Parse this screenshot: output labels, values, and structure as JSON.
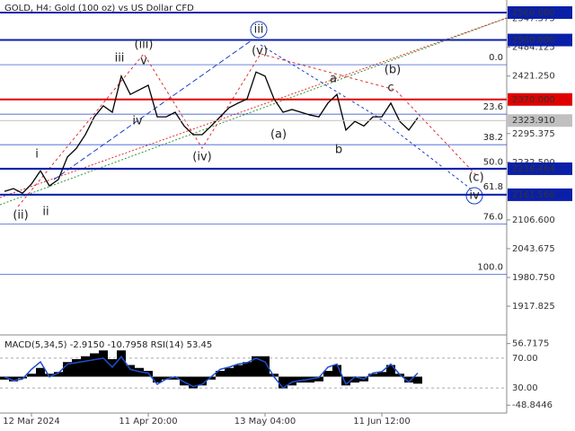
{
  "chart_data": {
    "type": "line",
    "title": "GOLD, H4:  Gold (100 oz) vs US Dollar CFD",
    "categories": [
      null,
      null,
      null,
      "12 Mar 2024",
      null,
      null,
      null,
      null,
      null,
      null,
      null,
      null,
      null,
      null,
      null,
      null,
      "11 Apr 20:00",
      null,
      null,
      null,
      null,
      null,
      null,
      null,
      null,
      null,
      null,
      null,
      null,
      "13 May 04:00",
      null,
      null,
      null,
      null,
      null,
      null,
      null,
      null,
      null,
      null,
      null,
      null,
      "11 Jun 12:00",
      null,
      null,
      null,
      null
    ],
    "series": [
      {
        "name": "GOLD",
        "color": "#000000",
        "values": [
          2169,
          2175,
          2165,
          2185,
          2214,
          2181,
          2195,
          2244,
          2263,
          2293,
          2332,
          2356,
          2342,
          2421,
          2381,
          2391,
          2401,
          2332,
          2332,
          2342,
          2312,
          2293,
          2293,
          2312,
          2332,
          2352,
          2362,
          2371,
          2430,
          2421,
          2371,
          2342,
          2348,
          2342,
          2336,
          2332,
          2362,
          2381,
          2303,
          2322,
          2312,
          2332,
          2332,
          2362,
          2322,
          2303,
          2330
        ]
      }
    ],
    "ylim": [
      1857,
      2587.5
    ],
    "yticks": [
      {
        "value": 2547.575,
        "label": "2547.575"
      },
      {
        "value": 2484.125,
        "label": "2484.125"
      },
      {
        "value": 2421.25,
        "label": "2421.250"
      },
      {
        "value": 2295.375,
        "label": "2295.375"
      },
      {
        "value": 2232.5,
        "label": "2232.500"
      },
      {
        "value": 2106.6,
        "label": "2106.600"
      },
      {
        "value": 2043.675,
        "label": "2043.675"
      },
      {
        "value": 1980.75,
        "label": "1980.750"
      },
      {
        "value": 1917.825,
        "label": "1917.825"
      }
    ],
    "levels": [
      {
        "value": 2560,
        "label": "2560.000",
        "color": "#0a1fa8"
      },
      {
        "value": 2500,
        "label": "2500.000",
        "color": "#0a1fa8"
      },
      {
        "value": 2370,
        "label": "2370.000",
        "color": "#e00000"
      },
      {
        "value": 2218.464,
        "label": "2218.464",
        "color": "#0a1fa8"
      },
      {
        "value": 2161.568,
        "label": "2161.568",
        "color": "#0a1fa8"
      }
    ],
    "current_price": {
      "value": 2323.91,
      "label": "2323.910",
      "color": "#c0c0c0"
    },
    "fibonacci": {
      "range": [
        2446,
        1988
      ],
      "levels": [
        {
          "value": 0,
          "label": "0.0"
        },
        23.6,
        38.2,
        {
          "value": 50,
          "label": "50.0"
        },
        61.8,
        {
          "value": 76,
          "label": "76.0"
        },
        {
          "value": 100,
          "label": "100.0"
        }
      ],
      "color": "#1a3fc8"
    },
    "wave_labels": [
      "iii",
      "(v)",
      "(iii)",
      "iii",
      "v",
      "iv",
      "(iv)",
      "(a)",
      "a",
      "b",
      "(b)",
      "c",
      "(c)",
      "iv",
      "i",
      "ii",
      "(ii)"
    ],
    "indicator": {
      "title": "MACD(5,34,5) -2.9150 -10.7958 RSI(14) 53.45",
      "macd": {
        "values": [
          -5,
          -8,
          -3,
          5,
          15,
          5,
          8,
          25,
          30,
          35,
          40,
          45,
          30,
          45,
          20,
          15,
          10,
          -10,
          -5,
          -5,
          -15,
          -20,
          -15,
          -5,
          10,
          15,
          20,
          25,
          35,
          35,
          5,
          -20,
          -15,
          -10,
          -10,
          -8,
          10,
          20,
          -15,
          -10,
          -8,
          5,
          8,
          20,
          5,
          -10,
          -12
        ],
        "color": "#000000",
        "ylim": [
          -70,
          70
        ],
        "yticks": [
          {
            "value": 56.7175,
            "label": "56.7175"
          },
          {
            "value": -48.8446,
            "label": "-48.8446"
          }
        ]
      },
      "rsi": {
        "values": [
          45,
          40,
          42,
          55,
          65,
          45,
          50,
          62,
          64,
          66,
          68,
          70,
          58,
          72,
          55,
          52,
          50,
          35,
          42,
          45,
          38,
          32,
          35,
          45,
          55,
          58,
          62,
          64,
          70,
          65,
          45,
          30,
          38,
          40,
          42,
          44,
          58,
          62,
          35,
          45,
          42,
          50,
          52,
          62,
          48,
          38,
          50
        ],
        "color": "#1e4fd0",
        "ylim": [
          0,
          100
        ],
        "yticks": [
          {
            "value": 70,
            "label": "70.00"
          },
          {
            "value": 30,
            "label": "30.00"
          }
        ]
      }
    }
  }
}
